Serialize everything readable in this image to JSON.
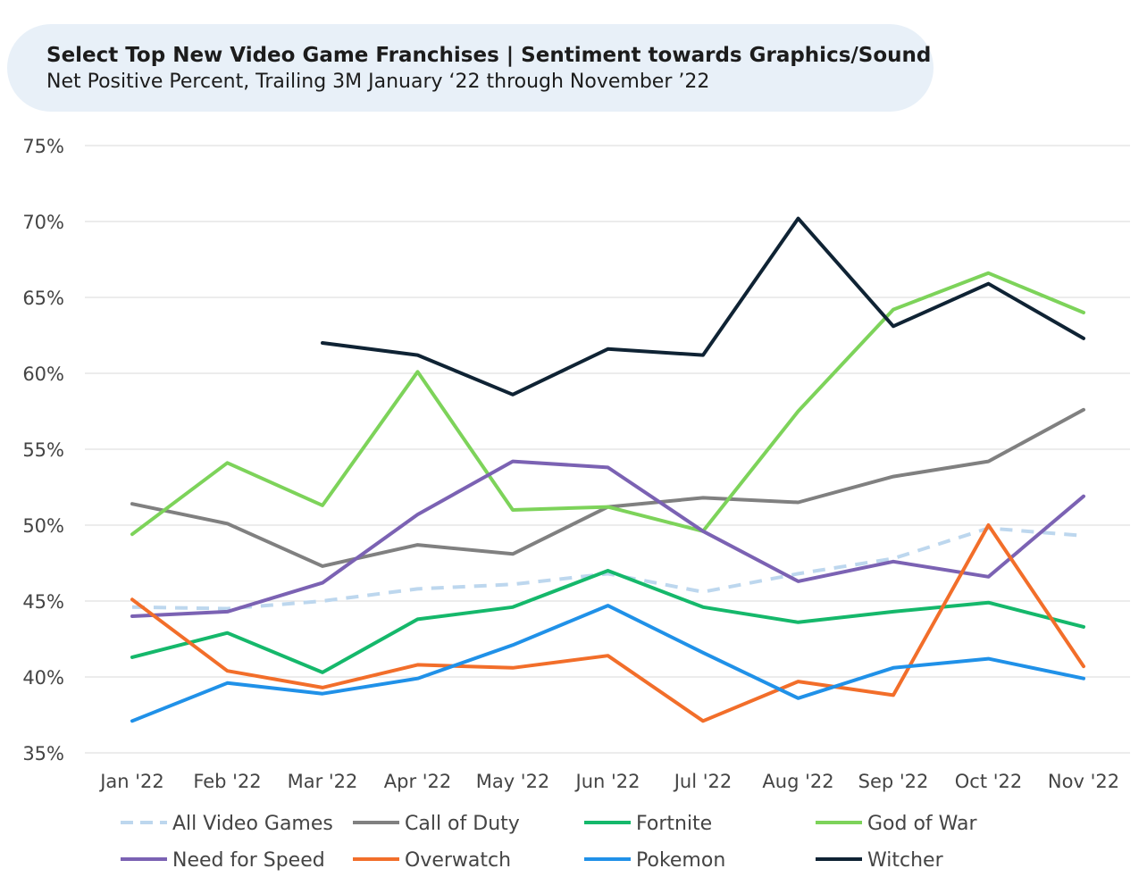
{
  "chart_data": {
    "type": "line",
    "title": "Select Top New Video Game Franchises | Sentiment towards Graphics/Sound",
    "subtitle": "Net Positive Percent, Trailing 3M January ‘22 through November ’22",
    "categories": [
      "Jan '22",
      "Feb '22",
      "Mar '22",
      "Apr '22",
      "May '22",
      "Jun '22",
      "Jul '22",
      "Aug '22",
      "Sep '22",
      "Oct '22",
      "Nov '22"
    ],
    "ylim": [
      35,
      75
    ],
    "yticks": [
      "35%",
      "40%",
      "45%",
      "50%",
      "55%",
      "60%",
      "65%",
      "70%",
      "75%"
    ],
    "grid": true,
    "legend_position": "bottom",
    "series": [
      {
        "name": "All Video Games",
        "color": "#bdd7ee",
        "dashed": true,
        "values": [
          44.6,
          44.5,
          45.0,
          45.8,
          46.1,
          46.8,
          45.6,
          46.8,
          47.8,
          49.8,
          49.3
        ]
      },
      {
        "name": "Call of Duty",
        "color": "#808080",
        "dashed": false,
        "values": [
          51.4,
          50.1,
          47.3,
          48.7,
          48.1,
          51.2,
          51.8,
          51.5,
          53.2,
          54.2,
          57.6
        ]
      },
      {
        "name": "Fortnite",
        "color": "#15b86b",
        "dashed": false,
        "values": [
          41.3,
          42.9,
          40.3,
          43.8,
          44.6,
          47.0,
          44.6,
          43.6,
          44.3,
          44.9,
          43.3
        ]
      },
      {
        "name": "God of War",
        "color": "#7dd35a",
        "dashed": false,
        "values": [
          49.4,
          54.1,
          51.3,
          60.1,
          51.0,
          51.2,
          49.6,
          57.5,
          64.2,
          66.6,
          64.0
        ]
      },
      {
        "name": "Need for Speed",
        "color": "#7b62b3",
        "dashed": false,
        "values": [
          44.0,
          44.3,
          46.2,
          50.7,
          54.2,
          53.8,
          49.6,
          46.3,
          47.6,
          46.6,
          51.9
        ]
      },
      {
        "name": "Overwatch",
        "color": "#f26e2a",
        "dashed": false,
        "values": [
          45.1,
          40.4,
          39.3,
          40.8,
          40.6,
          41.4,
          37.1,
          39.7,
          38.8,
          50.0,
          40.7
        ]
      },
      {
        "name": "Pokemon",
        "color": "#2091e8",
        "dashed": false,
        "values": [
          37.1,
          39.6,
          38.9,
          39.9,
          42.1,
          44.7,
          41.6,
          38.6,
          40.6,
          41.2,
          39.9
        ]
      },
      {
        "name": "Witcher",
        "color": "#0f2334",
        "dashed": false,
        "values": [
          null,
          null,
          62.0,
          61.2,
          58.6,
          61.6,
          61.2,
          70.2,
          63.1,
          65.9,
          62.3
        ]
      }
    ]
  }
}
